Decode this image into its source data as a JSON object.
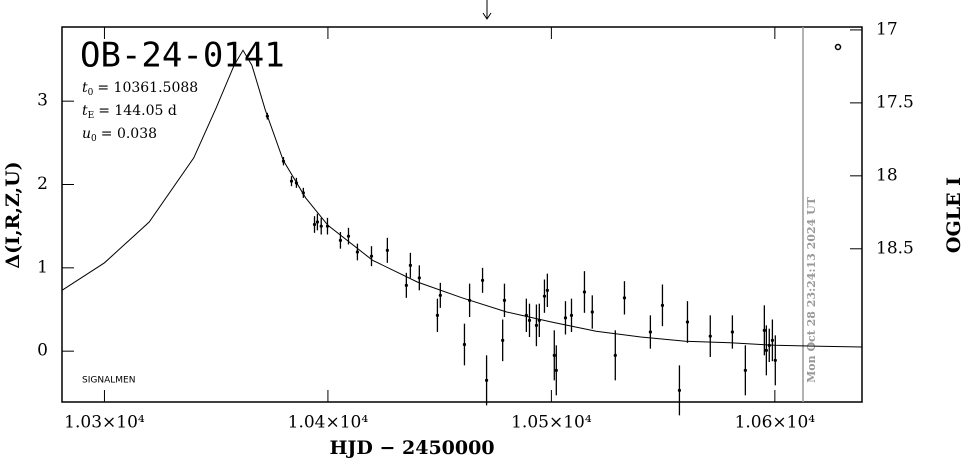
{
  "chart_data": {
    "type": "scatter",
    "title": "OB-24-0141",
    "params": [
      {
        "symbol": "t",
        "subscript": "0",
        "text": "= 10361.5088"
      },
      {
        "symbol": "t",
        "subscript": "E",
        "text": "= 144.05 d"
      },
      {
        "symbol": "u",
        "subscript": "0",
        "text": "= 0.038"
      }
    ],
    "note": "SIGNALMEN",
    "timestamp": "Mon Oct 28 23:24:13 2024 UT",
    "x_label": "HJD − 2450000",
    "y_label": "Δ(I,R,Z,U)",
    "y2_label": "OGLE I",
    "xlim": [
      10281,
      10639
    ],
    "ylim": [
      -0.61,
      3.89
    ],
    "y2lim": [
      19.55,
      16.98
    ],
    "xticks": [
      {
        "value": 10300,
        "label": "1.03×10⁴"
      },
      {
        "value": 10400,
        "label": "1.04×10⁴"
      },
      {
        "value": 10500,
        "label": "1.05×10⁴"
      },
      {
        "value": 10600,
        "label": "1.06×10⁴"
      }
    ],
    "yticks": [
      0,
      1,
      2,
      3
    ],
    "y2ticks": [
      17,
      17.5,
      18,
      18.5
    ],
    "series": [
      {
        "color": "#000000",
        "x": [
          10372.9,
          10380.1,
          10383.7,
          10385.9,
          10389,
          10394,
          10395.3,
          10397,
          10399.8,
          10405.6,
          10409.2,
          10413.2,
          10419.5,
          10426.6,
          10435.1,
          10436.9,
          10440.9,
          10449,
          10450.3,
          10461.1,
          10463.4,
          10469.2,
          10471,
          10478.2,
          10479,
          10488.8,
          10490.2,
          10493.3,
          10494.6,
          10496.9,
          10498.2,
          10501.3,
          10502.2,
          10506.3,
          10509,
          10514.8,
          10518.3,
          10528.6,
          10532.7,
          10544.3,
          10549.7,
          10557.3,
          10560.9,
          10571.1,
          10581,
          10586.8,
          10595.3,
          10596.2,
          10597.5,
          10598.9,
          10600.2
        ],
        "values": [
          2.82,
          2.28,
          2.04,
          2.02,
          1.9,
          1.52,
          1.55,
          1.5,
          1.5,
          1.33,
          1.38,
          1.19,
          1.14,
          1.21,
          0.79,
          1.03,
          0.88,
          0.43,
          0.67,
          0.08,
          0.61,
          0.85,
          -0.35,
          0.13,
          0.61,
          0.43,
          0.37,
          0.31,
          0.37,
          0.66,
          0.73,
          -0.05,
          -0.23,
          0.4,
          0.43,
          0.71,
          0.47,
          -0.05,
          0.64,
          0.23,
          0.55,
          -0.47,
          0.35,
          0.18,
          0.23,
          -0.23,
          0.25,
          0.01,
          0.07,
          0.13,
          -0.11
        ],
        "errors": [
          0.04,
          0.05,
          0.06,
          0.06,
          0.06,
          0.1,
          0.1,
          0.1,
          0.1,
          0.1,
          0.1,
          0.1,
          0.12,
          0.15,
          0.15,
          0.15,
          0.15,
          0.2,
          0.15,
          0.25,
          0.2,
          0.15,
          0.3,
          0.25,
          0.2,
          0.2,
          0.2,
          0.25,
          0.2,
          0.2,
          0.2,
          0.3,
          0.3,
          0.2,
          0.2,
          0.25,
          0.2,
          0.3,
          0.2,
          0.2,
          0.25,
          0.3,
          0.25,
          0.25,
          0.2,
          0.3,
          0.3,
          0.3,
          0.2,
          0.25,
          0.3
        ]
      },
      {
        "type": "line",
        "color": "#000000",
        "x": [
          10281,
          10300,
          10320,
          10340,
          10350,
          10358,
          10362,
          10366,
          10372,
          10380,
          10390,
          10400,
          10420,
          10440,
          10460,
          10480,
          10500,
          10520,
          10540,
          10560,
          10580,
          10600,
          10620,
          10639
        ],
        "values": [
          0.73,
          1.06,
          1.55,
          2.32,
          2.92,
          3.43,
          3.61,
          3.43,
          2.89,
          2.29,
          1.84,
          1.51,
          1.09,
          0.83,
          0.64,
          0.47,
          0.35,
          0.24,
          0.17,
          0.12,
          0.1,
          0.07,
          0.06,
          0.05
        ]
      }
    ]
  }
}
